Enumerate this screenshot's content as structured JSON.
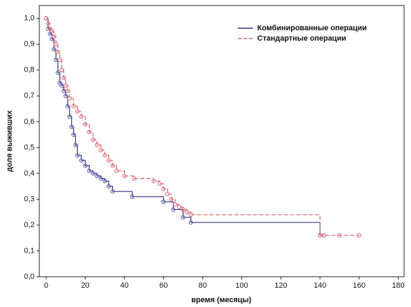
{
  "chart_data": {
    "type": "step",
    "xlabel": "время (месяцы)",
    "ylabel": "доля выживших",
    "xlim": [
      -3.5,
      183
    ],
    "ylim": [
      0,
      1.05
    ],
    "xticks": [
      0,
      20,
      40,
      60,
      80,
      100,
      120,
      140,
      160,
      180
    ],
    "yticks": [
      {
        "value": 0,
        "label": "0,0"
      },
      {
        "value": 0.1,
        "label": "0,1"
      },
      {
        "value": 0.2,
        "label": "0,2"
      },
      {
        "value": 0.3,
        "label": "0,3"
      },
      {
        "value": 0.4,
        "label": "0,4"
      },
      {
        "value": 0.5,
        "label": "0,5"
      },
      {
        "value": 0.6,
        "label": "0,6"
      },
      {
        "value": 0.7,
        "label": "0,7"
      },
      {
        "value": 0.8,
        "label": "0,8"
      },
      {
        "value": 0.9,
        "label": "0,9"
      },
      {
        "value": 1.0,
        "label": "1,0"
      }
    ],
    "legend": "upper right",
    "series": [
      {
        "name": "Комбинированные операции",
        "color": "#2e3380",
        "marker_color": "#6a70b8",
        "dash": "solid",
        "x": [
          0,
          1,
          2,
          3,
          4,
          5,
          6,
          7,
          8,
          9,
          10,
          11,
          12,
          13,
          14,
          15,
          16,
          18,
          20,
          22,
          24,
          26,
          28,
          30,
          32,
          34,
          44,
          60,
          65,
          70,
          74,
          140,
          142
        ],
        "values": [
          1.0,
          0.96,
          0.94,
          0.92,
          0.88,
          0.84,
          0.79,
          0.75,
          0.74,
          0.72,
          0.7,
          0.66,
          0.62,
          0.58,
          0.55,
          0.51,
          0.47,
          0.45,
          0.43,
          0.41,
          0.4,
          0.39,
          0.38,
          0.37,
          0.35,
          0.33,
          0.31,
          0.29,
          0.26,
          0.23,
          0.21,
          0.16,
          0.16
        ]
      },
      {
        "name": "Стандартные операции",
        "color": "#e05a6a",
        "marker_color": "#e07a84",
        "dash": "dashed",
        "x": [
          0,
          1,
          2,
          3,
          4,
          5,
          6,
          7,
          8,
          9,
          10,
          11,
          12,
          14,
          16,
          18,
          20,
          22,
          24,
          26,
          28,
          30,
          32,
          34,
          36,
          40,
          45,
          55,
          58,
          60,
          62,
          64,
          66,
          68,
          70,
          72,
          74,
          140,
          142,
          150,
          160
        ],
        "values": [
          1.0,
          0.98,
          0.96,
          0.95,
          0.93,
          0.9,
          0.87,
          0.84,
          0.8,
          0.77,
          0.74,
          0.72,
          0.69,
          0.66,
          0.64,
          0.62,
          0.59,
          0.56,
          0.53,
          0.51,
          0.49,
          0.47,
          0.45,
          0.43,
          0.41,
          0.39,
          0.38,
          0.37,
          0.36,
          0.34,
          0.32,
          0.3,
          0.28,
          0.27,
          0.26,
          0.25,
          0.24,
          0.16,
          0.16,
          0.16,
          0.16
        ]
      }
    ]
  }
}
